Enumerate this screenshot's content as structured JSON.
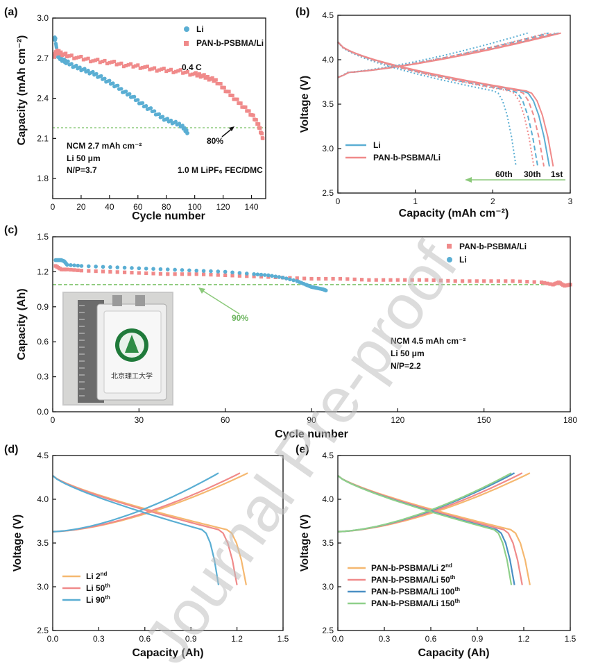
{
  "colors": {
    "li": "#5aaed3",
    "pan": "#f08a8a",
    "threshold": "#8bc97a",
    "li_dark": "#4a8fc4",
    "orange": "#f5b870",
    "green": "#8fd08a",
    "watermark": "#bfbfbf"
  },
  "watermark": "Journal Pre-proof",
  "panels": {
    "a": {
      "label": "(a)"
    },
    "b": {
      "label": "(b)"
    },
    "c": {
      "label": "(c)"
    },
    "d": {
      "label": "(d)"
    },
    "e": {
      "label": "(e)"
    }
  },
  "chart_data": [
    {
      "id": "a",
      "type": "scatter",
      "xlabel": "Cycle number",
      "ylabel": "Capacity (mAh cm⁻²)",
      "xlim": [
        0,
        150
      ],
      "ylim": [
        1.65,
        3.0
      ],
      "xticks": [
        "0",
        "20",
        "40",
        "60",
        "80",
        "100",
        "120",
        "140"
      ],
      "yticks": [
        "1.8",
        "2.1",
        "2.4",
        "2.7",
        "3.0"
      ],
      "legend": [
        "Li",
        "PAN-b-PSBMA/Li"
      ],
      "legend_position": "top-right",
      "annotations": [
        "0.4 C",
        "80%",
        "NCM 2.7 mAh cm⁻²",
        "Li 50 μm",
        "N/P=3.7",
        "1.0 M LiPF₆ FEC/DMC"
      ],
      "threshold_y": 2.18,
      "series": [
        {
          "name": "Li",
          "color": "li",
          "x": [
            1,
            2,
            3,
            5,
            8,
            10,
            15,
            20,
            25,
            30,
            35,
            40,
            45,
            50,
            55,
            60,
            65,
            70,
            75,
            80,
            85,
            90,
            93,
            95
          ],
          "y": [
            2.85,
            2.84,
            2.73,
            2.7,
            2.68,
            2.67,
            2.64,
            2.62,
            2.6,
            2.58,
            2.55,
            2.52,
            2.49,
            2.45,
            2.42,
            2.38,
            2.34,
            2.31,
            2.27,
            2.24,
            2.22,
            2.2,
            2.17,
            2.14
          ]
        },
        {
          "name": "PAN-b-PSBMA/Li",
          "color": "pan",
          "x": [
            1,
            3,
            5,
            10,
            20,
            30,
            40,
            50,
            60,
            70,
            80,
            90,
            100,
            105,
            110,
            115,
            120,
            125,
            130,
            135,
            140,
            144,
            146,
            148
          ],
          "y": [
            2.72,
            2.75,
            2.74,
            2.72,
            2.7,
            2.68,
            2.67,
            2.65,
            2.64,
            2.62,
            2.61,
            2.6,
            2.58,
            2.57,
            2.55,
            2.53,
            2.48,
            2.43,
            2.38,
            2.33,
            2.28,
            2.22,
            2.17,
            2.1
          ]
        }
      ]
    },
    {
      "id": "b",
      "type": "line",
      "xlabel": "Capacity (mAh cm⁻²)",
      "ylabel": "Voltage (V)",
      "xlim": [
        0,
        3
      ],
      "ylim": [
        2.5,
        4.5
      ],
      "xticks": [
        "0",
        "1",
        "2",
        "3"
      ],
      "yticks": [
        "2.5",
        "3.0",
        "3.5",
        "4.0",
        "4.5"
      ],
      "legend": [
        "Li",
        "PAN-b-PSBMA/Li"
      ],
      "legend_position": "bottom-left",
      "annotations": [
        "60th",
        "30th",
        "1st"
      ],
      "cycles": [
        {
          "cycle": "1st",
          "style": "solid",
          "li_end": 2.73,
          "pan_end": 2.78,
          "li_charge": 2.85,
          "pan_charge": 2.88
        },
        {
          "cycle": "30th",
          "style": "dashed",
          "li_end": 2.58,
          "pan_end": 2.66,
          "li_charge": 2.72,
          "pan_charge": 2.8
        },
        {
          "cycle": "60th",
          "style": "dotted",
          "li_end": 2.3,
          "pan_end": 2.53,
          "li_charge": 2.45,
          "pan_charge": 2.7
        }
      ]
    },
    {
      "id": "c",
      "type": "scatter",
      "xlabel": "Cycle number",
      "ylabel": "Capacity (Ah)",
      "xlim": [
        0,
        180
      ],
      "ylim": [
        0.0,
        1.5
      ],
      "xticks": [
        "0",
        "30",
        "60",
        "90",
        "120",
        "150",
        "180"
      ],
      "yticks": [
        "0.0",
        "0.3",
        "0.6",
        "0.9",
        "1.2",
        "1.5"
      ],
      "legend": [
        "PAN-b-PSBMA/Li",
        "Li"
      ],
      "legend_position": "top-right",
      "annotations": [
        "90%",
        "NCM 4.5 mAh cm⁻²",
        "Li 50 μm",
        "N/P=2.2"
      ],
      "photo_text": "北京理工大学",
      "threshold_y": 1.09,
      "series": [
        {
          "name": "PAN-b-PSBMA/Li",
          "color": "pan",
          "x": [
            1,
            3,
            5,
            10,
            20,
            30,
            40,
            50,
            60,
            70,
            80,
            90,
            100,
            110,
            120,
            130,
            140,
            150,
            160,
            170,
            174,
            176,
            178,
            180
          ],
          "y": [
            1.25,
            1.22,
            1.22,
            1.21,
            1.2,
            1.19,
            1.18,
            1.18,
            1.17,
            1.16,
            1.15,
            1.14,
            1.14,
            1.13,
            1.13,
            1.13,
            1.12,
            1.12,
            1.12,
            1.11,
            1.09,
            1.11,
            1.08,
            1.09
          ]
        },
        {
          "name": "Li",
          "color": "li",
          "x": [
            1,
            2,
            3,
            4,
            5,
            10,
            20,
            30,
            40,
            50,
            60,
            70,
            75,
            80,
            85,
            88,
            90,
            92,
            94,
            95
          ],
          "y": [
            1.3,
            1.3,
            1.3,
            1.29,
            1.26,
            1.25,
            1.24,
            1.23,
            1.22,
            1.21,
            1.2,
            1.18,
            1.17,
            1.15,
            1.12,
            1.09,
            1.07,
            1.06,
            1.05,
            1.04
          ]
        }
      ]
    },
    {
      "id": "d",
      "type": "line",
      "xlabel": "Capacity (Ah)",
      "ylabel": "Voltage (V)",
      "xlim": [
        0,
        1.5
      ],
      "ylim": [
        2.5,
        4.5
      ],
      "xticks": [
        "0.0",
        "0.3",
        "0.6",
        "0.9",
        "1.2",
        "1.5"
      ],
      "yticks": [
        "2.5",
        "3.0",
        "3.5",
        "4.0",
        "4.5"
      ],
      "legend": [
        "Li 2nd",
        "Li 50th",
        "Li 90th"
      ],
      "legend_position": "bottom-left",
      "series": [
        {
          "name": "Li 2nd",
          "color": "orange",
          "charge_end": 1.27,
          "discharge_end": 1.26
        },
        {
          "name": "Li 50th",
          "color": "pan",
          "charge_end": 1.22,
          "discharge_end": 1.2
        },
        {
          "name": "Li 90th",
          "color": "li",
          "charge_end": 1.08,
          "discharge_end": 1.08
        }
      ]
    },
    {
      "id": "e",
      "type": "line",
      "xlabel": "Capacity (Ah)",
      "ylabel": "Voltage (V)",
      "xlim": [
        0,
        1.5
      ],
      "ylim": [
        2.5,
        4.5
      ],
      "xticks": [
        "0.0",
        "0.3",
        "0.6",
        "0.9",
        "1.2",
        "1.5"
      ],
      "yticks": [
        "2.5",
        "3.0",
        "3.5",
        "4.0",
        "4.5"
      ],
      "legend": [
        "PAN-b-PSBMA/Li 2nd",
        "PAN-b-PSBMA/Li 50th",
        "PAN-b-PSBMA/Li 100th",
        "PAN-b-PSBMA/Li 150th"
      ],
      "legend_position": "bottom-left",
      "series": [
        {
          "name": "PAN-b-PSBMA/Li 2nd",
          "color": "orange",
          "charge_end": 1.24,
          "discharge_end": 1.24
        },
        {
          "name": "PAN-b-PSBMA/Li 50th",
          "color": "pan",
          "charge_end": 1.19,
          "discharge_end": 1.19
        },
        {
          "name": "PAN-b-PSBMA/Li 100th",
          "color": "li_dark",
          "charge_end": 1.14,
          "discharge_end": 1.14
        },
        {
          "name": "PAN-b-PSBMA/Li 150th",
          "color": "green",
          "charge_end": 1.12,
          "discharge_end": 1.12
        }
      ]
    }
  ]
}
